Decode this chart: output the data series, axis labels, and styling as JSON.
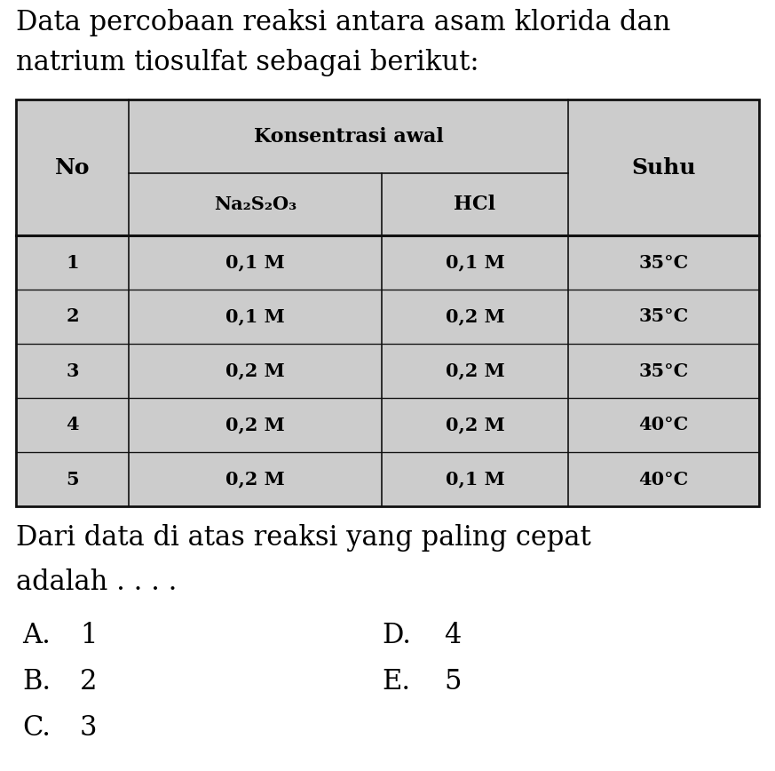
{
  "title_line1": "Data percobaan reaksi antara asam klorida dan",
  "title_line2": "natrium tiosulfat sebagai berikut:",
  "header_col1": "No",
  "header_konsentrasi": "Konsentrasi awal",
  "header_na2s2o3": "Na₂S₂O₃",
  "header_hcl": "HCl",
  "header_suhu": "Suhu",
  "table_data": [
    [
      "1",
      "0,1 M",
      "0,1 M",
      "35°C"
    ],
    [
      "2",
      "0,1 M",
      "0,2 M",
      "35°C"
    ],
    [
      "3",
      "0,2 M",
      "0,2 M",
      "35°C"
    ],
    [
      "4",
      "0,2 M",
      "0,2 M",
      "40°C"
    ],
    [
      "5",
      "0,2 M",
      "0,1 M",
      "40°C"
    ]
  ],
  "question_line1": "Dari data di atas reaksi yang paling cepat",
  "question_line2": "adalah . . . .",
  "choices": [
    [
      "A.",
      "1",
      "D.",
      "4"
    ],
    [
      "B.",
      "2",
      "E.",
      "5"
    ],
    [
      "C.",
      "3",
      "",
      ""
    ]
  ],
  "table_bg": "#cccccc",
  "text_color": "#000000",
  "border_color": "#111111",
  "page_bg": "#ffffff",
  "title_fontsize": 22,
  "header_fontsize": 15,
  "cell_fontsize": 14,
  "question_fontsize": 22,
  "choice_fontsize": 22
}
